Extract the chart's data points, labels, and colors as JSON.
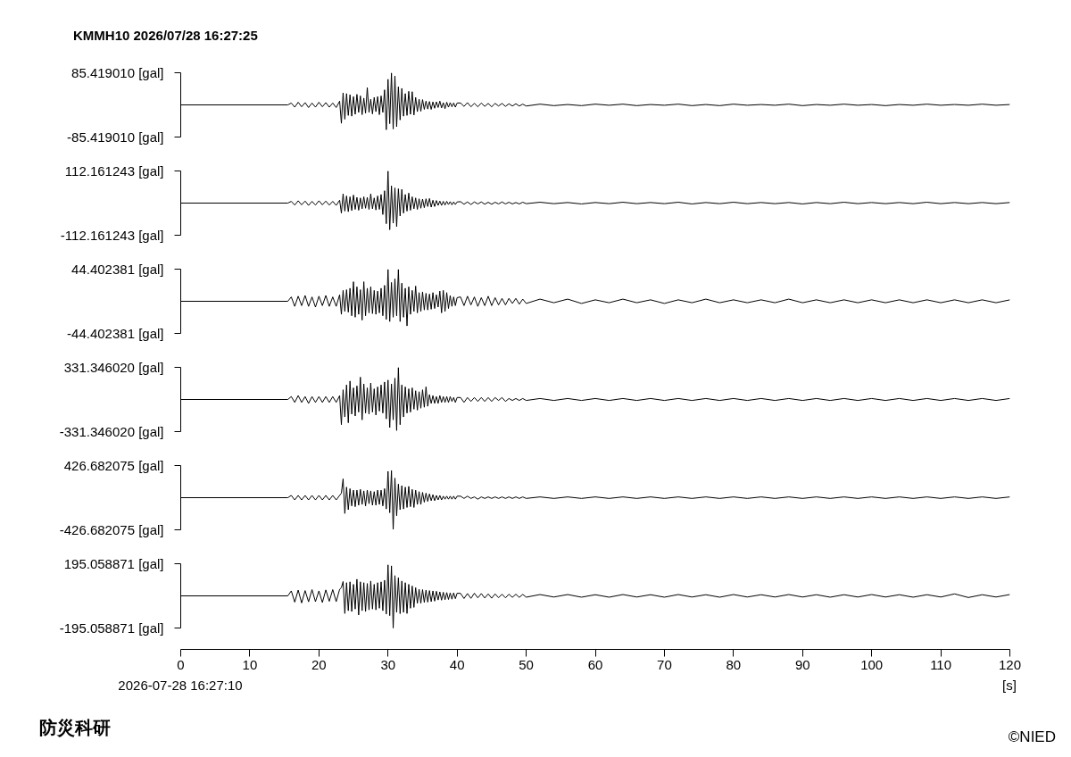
{
  "chart_data": [
    {
      "type": "line",
      "title": "KMMH10 2026/07/28 16:27:25",
      "color": "#000000",
      "xlim": [
        0,
        120
      ],
      "ylim": [
        -85.41901,
        85.41901
      ],
      "yticks": [
        {
          "value": 85.41901,
          "label": "85.419010 [gal]"
        },
        {
          "value": -85.41901,
          "label": "-85.419010 [gal]"
        }
      ],
      "tick_labels": "y",
      "x": [
        0,
        15.5,
        16,
        16.5,
        17,
        17.5,
        18,
        18.5,
        19,
        19.5,
        20,
        20.5,
        21,
        21.5,
        22,
        22.5,
        23,
        23.25,
        23.5,
        23.75,
        24,
        24.25,
        24.5,
        24.75,
        25,
        25.25,
        25.5,
        25.75,
        26,
        26.25,
        26.5,
        26.75,
        27,
        27.25,
        27.5,
        27.75,
        28,
        28.25,
        28.5,
        28.75,
        29,
        29.25,
        29.5,
        29.75,
        30,
        30.25,
        30.5,
        30.75,
        31,
        31.25,
        31.5,
        31.75,
        32,
        32.25,
        32.5,
        32.75,
        33,
        33.25,
        33.5,
        33.75,
        34,
        34.25,
        34.5,
        34.75,
        35,
        35.25,
        35.5,
        35.75,
        36,
        36.25,
        36.5,
        36.75,
        37,
        37.25,
        37.5,
        37.75,
        38,
        38.25,
        38.5,
        38.75,
        39,
        39.25,
        39.5,
        39.75,
        40,
        40.5,
        41,
        41.5,
        42,
        42.5,
        43,
        43.5,
        44,
        44.5,
        45,
        45.5,
        46,
        46.5,
        47,
        47.5,
        48,
        48.5,
        49,
        49.5,
        50,
        52,
        54,
        56,
        58,
        60,
        62,
        64,
        66,
        68,
        70,
        72,
        74,
        76,
        78,
        80,
        82,
        84,
        86,
        88,
        90,
        92,
        94,
        96,
        98,
        100,
        102,
        104,
        106,
        108,
        110,
        112,
        114,
        116,
        118,
        120
      ],
      "values": [
        0,
        0,
        5,
        -6,
        7,
        -5,
        6,
        -7,
        5,
        -6,
        7,
        -5,
        6,
        -6,
        5,
        -7,
        10,
        -49,
        32,
        -38,
        30,
        -28,
        27,
        -30,
        22,
        -25,
        28,
        -20,
        24,
        -26,
        18,
        -22,
        46,
        -20,
        15,
        -24,
        20,
        -18,
        22,
        -26,
        24,
        -20,
        40,
        -66,
        68,
        -50,
        85,
        -64,
        77,
        -58,
        48,
        -40,
        44,
        -30,
        30,
        -28,
        36,
        -25,
        35,
        -27,
        20,
        -18,
        15,
        -17,
        14,
        -12,
        10,
        -11,
        9,
        -12,
        8,
        -9,
        8,
        -7,
        10,
        -8,
        6,
        -10,
        7,
        -6,
        6,
        -5,
        5,
        -6,
        5,
        5,
        -4,
        6,
        -5,
        4,
        -5,
        5,
        -4,
        4,
        -5,
        4,
        -3,
        4,
        -4,
        3,
        -3,
        3,
        -3,
        2,
        -3,
        2,
        -2,
        1,
        -2,
        2,
        -1,
        2,
        -2,
        1,
        -1,
        2,
        -2,
        1,
        -2,
        2,
        -1,
        1,
        -1,
        2,
        -2,
        1,
        -1,
        2,
        -1,
        1,
        -2,
        1,
        -1,
        2,
        -1,
        1,
        -1,
        2,
        -1,
        1
      ]
    },
    {
      "type": "line",
      "color": "#000000",
      "xlim": [
        0,
        120
      ],
      "ylim": [
        -112.161243,
        112.161243
      ],
      "yticks": [
        {
          "value": 112.161243,
          "label": "112.161243 [gal]"
        },
        {
          "value": -112.161243,
          "label": "-112.161243 [gal]"
        }
      ],
      "tick_labels": "y",
      "x": [
        0,
        15.5,
        16,
        16.5,
        17,
        17.5,
        18,
        18.5,
        19,
        19.5,
        20,
        20.5,
        21,
        21.5,
        22,
        22.5,
        23,
        23.25,
        23.5,
        23.75,
        24,
        24.25,
        24.5,
        24.75,
        25,
        25.25,
        25.5,
        25.75,
        26,
        26.25,
        26.5,
        26.75,
        27,
        27.25,
        27.5,
        27.75,
        28,
        28.25,
        28.5,
        28.75,
        29,
        29.25,
        29.5,
        29.75,
        30,
        30.25,
        30.5,
        30.75,
        31,
        31.25,
        31.5,
        31.75,
        32,
        32.25,
        32.5,
        32.75,
        33,
        33.25,
        33.5,
        33.75,
        34,
        34.25,
        34.5,
        34.75,
        35,
        35.25,
        35.5,
        35.75,
        36,
        36.25,
        36.5,
        36.75,
        37,
        37.25,
        37.5,
        37.75,
        38,
        38.25,
        38.5,
        38.75,
        39,
        39.25,
        39.5,
        39.75,
        40,
        40.5,
        41,
        41.5,
        42,
        42.5,
        43,
        43.5,
        44,
        44.5,
        45,
        45.5,
        46,
        46.5,
        47,
        47.5,
        48,
        48.5,
        49,
        49.5,
        50,
        52,
        54,
        56,
        58,
        60,
        62,
        64,
        66,
        68,
        70,
        72,
        74,
        76,
        78,
        80,
        82,
        84,
        86,
        88,
        90,
        92,
        94,
        96,
        98,
        100,
        102,
        104,
        106,
        108,
        110,
        112,
        114,
        116,
        118,
        120
      ],
      "values": [
        0,
        0,
        6,
        -7,
        8,
        -6,
        7,
        -8,
        6,
        -7,
        8,
        -6,
        7,
        -7,
        6,
        -8,
        10,
        -35,
        32,
        -28,
        25,
        -30,
        22,
        -26,
        28,
        -22,
        20,
        -25,
        18,
        -20,
        22,
        -18,
        20,
        -22,
        32,
        -20,
        18,
        -24,
        25,
        -22,
        30,
        -40,
        43,
        -72,
        112,
        -93,
        60,
        -70,
        53,
        -82,
        50,
        -45,
        48,
        -35,
        30,
        -28,
        35,
        -25,
        22,
        -20,
        18,
        -22,
        15,
        -18,
        14,
        -16,
        15,
        -12,
        16,
        -14,
        10,
        -12,
        9,
        -8,
        7,
        -8,
        6,
        -7,
        6,
        -5,
        5,
        -6,
        4,
        -5,
        4,
        5,
        -4,
        4,
        -5,
        4,
        -3,
        4,
        -4,
        3,
        -4,
        3,
        -3,
        4,
        -3,
        3,
        -3,
        2,
        -3,
        3,
        -2,
        3,
        -2,
        2,
        -3,
        2,
        -2,
        3,
        -2,
        2,
        -2,
        3,
        -3,
        2,
        -2,
        3,
        -2,
        2,
        -2,
        2,
        -3,
        2,
        -2,
        3,
        -2,
        2,
        -2,
        2,
        -2,
        3,
        -2,
        2,
        -2,
        2,
        -2,
        2
      ]
    },
    {
      "type": "line",
      "color": "#000000",
      "xlim": [
        0,
        120
      ],
      "ylim": [
        -44.402381,
        44.402381
      ],
      "yticks": [
        {
          "value": 44.402381,
          "label": "44.402381 [gal]"
        },
        {
          "value": -44.402381,
          "label": "-44.402381 [gal]"
        }
      ],
      "tick_labels": "y",
      "x": [
        0,
        15.5,
        16,
        16.5,
        17,
        17.5,
        18,
        18.5,
        19,
        19.5,
        20,
        20.5,
        21,
        21.5,
        22,
        22.5,
        23,
        23.25,
        23.5,
        23.75,
        24,
        24.25,
        24.5,
        24.75,
        25,
        25.25,
        25.5,
        25.75,
        26,
        26.25,
        26.5,
        26.75,
        27,
        27.25,
        27.5,
        27.75,
        28,
        28.25,
        28.5,
        28.75,
        29,
        29.25,
        29.5,
        29.75,
        30,
        30.25,
        30.5,
        30.75,
        31,
        31.25,
        31.5,
        31.75,
        32,
        32.25,
        32.5,
        32.75,
        33,
        33.25,
        33.5,
        33.75,
        34,
        34.25,
        34.5,
        34.75,
        35,
        35.25,
        35.5,
        35.75,
        36,
        36.25,
        36.5,
        36.75,
        37,
        37.25,
        37.5,
        37.75,
        38,
        38.25,
        38.5,
        38.75,
        39,
        39.25,
        39.5,
        39.75,
        40,
        40.5,
        41,
        41.5,
        42,
        42.5,
        43,
        43.5,
        44,
        44.5,
        45,
        45.5,
        46,
        46.5,
        47,
        47.5,
        48,
        48.5,
        49,
        49.5,
        50,
        52,
        54,
        56,
        58,
        60,
        62,
        64,
        66,
        68,
        70,
        72,
        74,
        76,
        78,
        80,
        82,
        84,
        86,
        88,
        90,
        92,
        94,
        96,
        98,
        100,
        102,
        104,
        106,
        108,
        110,
        112,
        114,
        116,
        118,
        120
      ],
      "values": [
        0,
        0,
        6,
        -7,
        7,
        -6,
        8,
        -7,
        6,
        -8,
        7,
        -6,
        8,
        -7,
        6,
        -7,
        9,
        -18,
        15,
        -14,
        16,
        -15,
        18,
        -20,
        27,
        -22,
        20,
        -18,
        16,
        -26,
        27,
        -20,
        18,
        -16,
        20,
        -17,
        15,
        -18,
        14,
        -16,
        18,
        -20,
        22,
        -25,
        44,
        -28,
        26,
        -22,
        31,
        -20,
        44,
        -28,
        25,
        -22,
        18,
        -34,
        20,
        -18,
        15,
        -14,
        21,
        -16,
        12,
        -14,
        13,
        -12,
        11,
        -12,
        10,
        -11,
        12,
        -10,
        9,
        -8,
        14,
        -16,
        15,
        -14,
        12,
        -10,
        8,
        -7,
        6,
        -6,
        5,
        6,
        -6,
        7,
        -5,
        6,
        -7,
        5,
        -6,
        7,
        -6,
        5,
        -5,
        4,
        -5,
        4,
        -3,
        4,
        -4,
        3,
        -3,
        3,
        -2,
        3,
        -3,
        2,
        -2,
        3,
        -2,
        2,
        -3,
        2,
        -2,
        3,
        -2,
        2,
        -2,
        2,
        -2,
        3,
        -2,
        2,
        -2,
        2,
        -2,
        2,
        -2,
        2,
        -2,
        2,
        -2,
        2,
        -2,
        2,
        -2,
        2
      ]
    },
    {
      "type": "line",
      "color": "#000000",
      "xlim": [
        0,
        120
      ],
      "ylim": [
        -331.34602,
        331.34602
      ],
      "yticks": [
        {
          "value": 331.34602,
          "label": "331.346020 [gal]"
        },
        {
          "value": -331.34602,
          "label": "-331.346020 [gal]"
        }
      ],
      "tick_labels": "y",
      "x": [
        0,
        15.5,
        16,
        16.5,
        17,
        17.5,
        18,
        18.5,
        19,
        19.5,
        20,
        20.5,
        21,
        21.5,
        22,
        22.5,
        23,
        23.25,
        23.5,
        23.75,
        24,
        24.25,
        24.5,
        24.75,
        25,
        25.25,
        25.5,
        25.75,
        26,
        26.25,
        26.5,
        26.75,
        27,
        27.25,
        27.5,
        27.75,
        28,
        28.25,
        28.5,
        28.75,
        29,
        29.25,
        29.5,
        29.75,
        30,
        30.25,
        30.5,
        30.75,
        31,
        31.25,
        31.5,
        31.75,
        32,
        32.25,
        32.5,
        32.75,
        33,
        33.25,
        33.5,
        33.75,
        34,
        34.25,
        34.5,
        34.75,
        35,
        35.25,
        35.5,
        35.75,
        36,
        36.25,
        36.5,
        36.75,
        37,
        37.25,
        37.5,
        37.75,
        38,
        38.25,
        38.5,
        38.75,
        39,
        39.25,
        39.5,
        39.75,
        40,
        40.5,
        41,
        41.5,
        42,
        42.5,
        43,
        43.5,
        44,
        44.5,
        45,
        45.5,
        46,
        46.5,
        47,
        47.5,
        48,
        48.5,
        49,
        49.5,
        50,
        52,
        54,
        56,
        58,
        60,
        62,
        64,
        66,
        68,
        70,
        72,
        74,
        76,
        78,
        80,
        82,
        84,
        86,
        88,
        90,
        92,
        94,
        96,
        98,
        100,
        102,
        104,
        106,
        108,
        110,
        112,
        114,
        116,
        118,
        120
      ],
      "values": [
        0,
        0,
        30,
        -30,
        40,
        -30,
        30,
        -40,
        30,
        -30,
        30,
        -30,
        30,
        -30,
        30,
        -30,
        40,
        -260,
        100,
        -180,
        150,
        -240,
        190,
        -150,
        120,
        -170,
        140,
        -130,
        230,
        -210,
        160,
        -140,
        120,
        -150,
        170,
        -130,
        110,
        -160,
        130,
        -120,
        150,
        -140,
        180,
        -200,
        200,
        -290,
        160,
        -210,
        220,
        -320,
        330,
        -260,
        150,
        -180,
        130,
        -140,
        110,
        -130,
        120,
        -100,
        90,
        -110,
        80,
        -90,
        100,
        -80,
        130,
        -70,
        50,
        -40,
        40,
        -40,
        30,
        -40,
        40,
        -30,
        30,
        -30,
        30,
        -30,
        30,
        -20,
        20,
        -30,
        20,
        20,
        -30,
        20,
        -20,
        20,
        -20,
        20,
        -20,
        20,
        -20,
        20,
        -10,
        20,
        -20,
        10,
        -10,
        10,
        -10,
        10,
        -10,
        10,
        -10,
        10,
        -10,
        10,
        -10,
        10,
        -10,
        10,
        -10,
        10,
        -10,
        10,
        -10,
        10,
        -10,
        10,
        -10,
        10,
        -10,
        10,
        -10,
        10,
        -10,
        10,
        -10,
        10,
        -10,
        10,
        -10,
        10,
        -10,
        10,
        -10,
        10
      ]
    },
    {
      "type": "line",
      "color": "#000000",
      "xlim": [
        0,
        120
      ],
      "ylim": [
        -426.682075,
        426.682075
      ],
      "yticks": [
        {
          "value": 426.682075,
          "label": "426.682075 [gal]"
        },
        {
          "value": -426.682075,
          "label": "-426.682075 [gal]"
        }
      ],
      "tick_labels": "y",
      "x": [
        0,
        15.5,
        16,
        16.5,
        17,
        17.5,
        18,
        18.5,
        19,
        19.5,
        20,
        20.5,
        21,
        21.5,
        22,
        22.5,
        23,
        23.25,
        23.5,
        23.75,
        24,
        24.25,
        24.5,
        24.75,
        25,
        25.25,
        25.5,
        25.75,
        26,
        26.25,
        26.5,
        26.75,
        27,
        27.25,
        27.5,
        27.75,
        28,
        28.25,
        28.5,
        28.75,
        29,
        29.25,
        29.5,
        29.75,
        30,
        30.25,
        30.5,
        30.75,
        31,
        31.25,
        31.5,
        31.75,
        32,
        32.25,
        32.5,
        32.75,
        33,
        33.25,
        33.5,
        33.75,
        34,
        34.25,
        34.5,
        34.75,
        35,
        35.25,
        35.5,
        35.75,
        36,
        36.25,
        36.5,
        36.75,
        37,
        37.25,
        37.5,
        37.75,
        38,
        38.25,
        38.5,
        38.75,
        39,
        39.25,
        39.5,
        39.75,
        40,
        40.5,
        41,
        41.5,
        42,
        42.5,
        43,
        43.5,
        44,
        44.5,
        45,
        45.5,
        46,
        46.5,
        47,
        47.5,
        48,
        48.5,
        49,
        49.5,
        50,
        52,
        54,
        56,
        58,
        60,
        62,
        64,
        66,
        68,
        70,
        72,
        74,
        76,
        78,
        80,
        82,
        84,
        86,
        88,
        90,
        92,
        94,
        96,
        98,
        100,
        102,
        104,
        106,
        108,
        110,
        112,
        114,
        116,
        118,
        120
      ],
      "values": [
        0,
        0,
        30,
        -30,
        30,
        -30,
        30,
        -30,
        30,
        -30,
        30,
        -30,
        30,
        -30,
        30,
        -30,
        30,
        60,
        250,
        -210,
        140,
        -160,
        120,
        -110,
        100,
        -120,
        100,
        -100,
        110,
        -90,
        90,
        -110,
        100,
        -80,
        90,
        -100,
        80,
        -100,
        100,
        -90,
        100,
        -110,
        120,
        -150,
        350,
        -200,
        360,
        -420,
        260,
        -240,
        180,
        -160,
        160,
        -150,
        140,
        -130,
        150,
        -120,
        110,
        -130,
        100,
        -90,
        80,
        -90,
        70,
        -60,
        60,
        -50,
        50,
        -40,
        40,
        -40,
        30,
        -30,
        30,
        -30,
        20,
        -20,
        20,
        -20,
        20,
        -20,
        20,
        -20,
        20,
        20,
        -10,
        20,
        -10,
        10,
        -20,
        10,
        -10,
        10,
        -10,
        10,
        -10,
        10,
        -10,
        10,
        -10,
        10,
        -10,
        10,
        -10,
        10,
        -10,
        10,
        -10,
        10,
        -10,
        10,
        -10,
        10,
        -10,
        10,
        -10,
        10,
        -10,
        10,
        -10,
        10,
        -10,
        10,
        -10,
        10,
        -10,
        10,
        -10,
        10,
        -10,
        10,
        -10,
        10,
        -10,
        10,
        -10,
        10,
        -10,
        10
      ]
    },
    {
      "type": "line",
      "color": "#000000",
      "xlim": [
        0,
        120
      ],
      "ylim": [
        -195.058871,
        195.058871
      ],
      "yticks": [
        {
          "value": 195.058871,
          "label": "195.058871 [gal]"
        },
        {
          "value": -195.058871,
          "label": "-195.058871 [gal]"
        }
      ],
      "xticks": [
        0,
        10,
        20,
        30,
        40,
        50,
        60,
        70,
        80,
        90,
        100,
        110,
        120
      ],
      "xlabel": "[s]",
      "annotations": [
        "2026-07-28 16:27:10",
        "防災科研",
        "©NIED"
      ],
      "x": [
        0,
        15.5,
        16,
        16.5,
        17,
        17.5,
        18,
        18.5,
        19,
        19.5,
        20,
        20.5,
        21,
        21.5,
        22,
        22.5,
        23,
        23.25,
        23.5,
        23.75,
        24,
        24.25,
        24.5,
        24.75,
        25,
        25.25,
        25.5,
        25.75,
        26,
        26.25,
        26.5,
        26.75,
        27,
        27.25,
        27.5,
        27.75,
        28,
        28.25,
        28.5,
        28.75,
        29,
        29.25,
        29.5,
        29.75,
        30,
        30.25,
        30.5,
        30.75,
        31,
        31.25,
        31.5,
        31.75,
        32,
        32.25,
        32.5,
        32.75,
        33,
        33.25,
        33.5,
        33.75,
        34,
        34.25,
        34.5,
        34.75,
        35,
        35.25,
        35.5,
        35.75,
        36,
        36.25,
        36.5,
        36.75,
        37,
        37.25,
        37.5,
        37.75,
        38,
        38.25,
        38.5,
        38.75,
        39,
        39.25,
        39.5,
        39.75,
        40,
        40.5,
        41,
        41.5,
        42,
        42.5,
        43,
        43.5,
        44,
        44.5,
        45,
        45.5,
        46,
        46.5,
        47,
        47.5,
        48,
        48.5,
        49,
        49.5,
        50,
        52,
        54,
        56,
        58,
        60,
        62,
        64,
        66,
        68,
        70,
        72,
        74,
        76,
        78,
        80,
        82,
        84,
        86,
        88,
        90,
        92,
        94,
        96,
        98,
        100,
        102,
        104,
        106,
        108,
        110,
        112,
        114,
        116,
        118,
        120
      ],
      "values": [
        0,
        0,
        30,
        -38,
        35,
        -43,
        32,
        -36,
        38,
        -35,
        30,
        -40,
        36,
        -33,
        38,
        -35,
        40,
        50,
        87,
        -107,
        80,
        -90,
        85,
        -95,
        70,
        -80,
        101,
        -116,
        85,
        -90,
        80,
        -95,
        75,
        -85,
        90,
        -80,
        70,
        -85,
        80,
        -75,
        85,
        -90,
        95,
        -110,
        188,
        -120,
        182,
        -195,
        123,
        -100,
        110,
        -108,
        90,
        -100,
        80,
        -107,
        70,
        -75,
        60,
        -70,
        50,
        -45,
        40,
        -45,
        38,
        -40,
        35,
        -38,
        32,
        -35,
        30,
        -32,
        28,
        -25,
        24,
        -26,
        22,
        -24,
        20,
        -22,
        18,
        -20,
        18,
        -17,
        16,
        15,
        -16,
        14,
        -15,
        16,
        -12,
        14,
        -13,
        12,
        -14,
        12,
        -11,
        10,
        -12,
        10,
        -9,
        10,
        -9,
        9,
        -8,
        8,
        -7,
        8,
        -8,
        7,
        -8,
        8,
        -7,
        7,
        -8,
        8,
        -7,
        7,
        -8,
        8,
        -7,
        7,
        -7,
        8,
        -7,
        7,
        -8,
        7,
        -7,
        8,
        -7,
        7,
        -8,
        7,
        -7,
        12,
        -10,
        7,
        -7,
        8
      ]
    }
  ]
}
